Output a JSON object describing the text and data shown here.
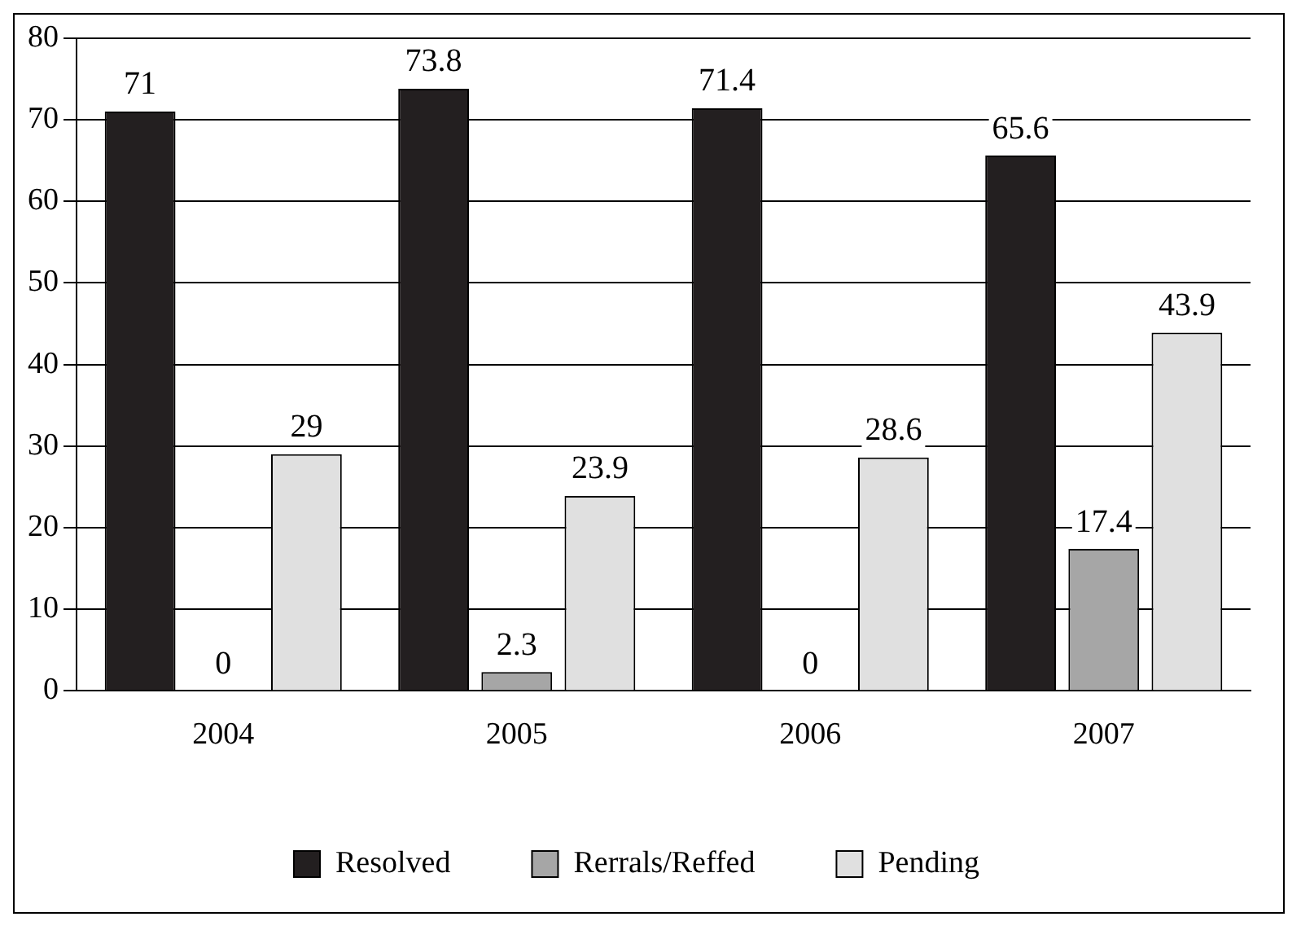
{
  "chart_data": {
    "type": "bar",
    "categories": [
      "2004",
      "2005",
      "2006",
      "2007"
    ],
    "series": [
      {
        "name": "Resolved",
        "color": "#231f20",
        "values": [
          71,
          73.8,
          71.4,
          65.6
        ]
      },
      {
        "name": "Rerrals/Reffed",
        "color": "#a6a6a6",
        "values": [
          0,
          2.3,
          0,
          17.4
        ]
      },
      {
        "name": "Pending",
        "color": "#e0e0e0",
        "values": [
          29,
          23.9,
          28.6,
          43.9
        ]
      }
    ],
    "ylim": [
      0,
      80
    ],
    "yticks": [
      0,
      10,
      20,
      30,
      40,
      50,
      60,
      70,
      80
    ],
    "grid": "y",
    "legend": "bottom",
    "data_labels": true
  }
}
